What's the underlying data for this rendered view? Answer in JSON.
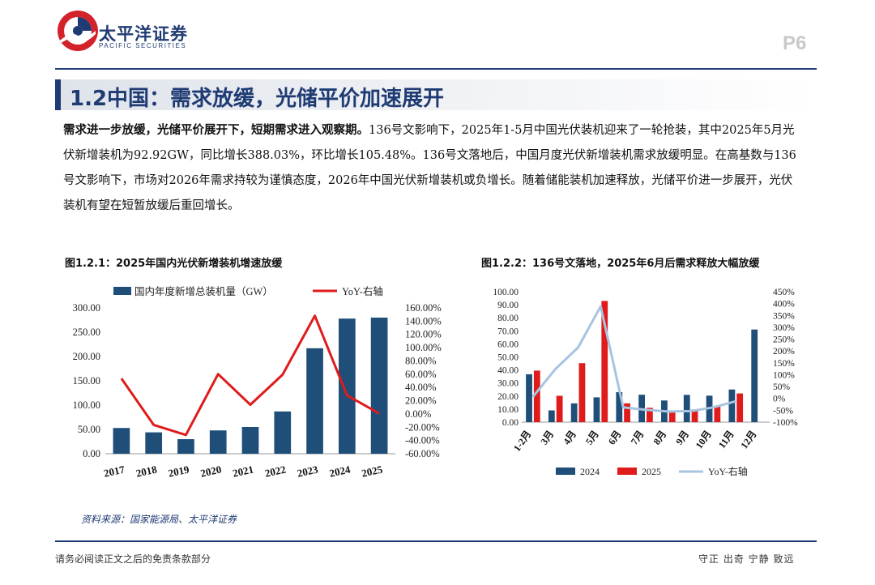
{
  "header": {
    "brand_cn": "太平洋证券",
    "brand_en": "PACIFIC SECURITIES",
    "page_number": "P6"
  },
  "section_title": "1.2中国：需求放缓，光储平价加速展开",
  "body": {
    "lead": "需求进一步放缓，光储平价展开下，短期需求进入观察期。",
    "text": "136号文影响下，2025年1-5月中国光伏装机迎来了一轮抢装，其中2025年5月光伏新增装机为92.92GW，同比增长388.03%，环比增长105.48%。136号文落地后，中国月度光伏新增装机需求放缓明显。在高基数与136号文影响下，市场对2026年需求持较为谨慎态度，2026年中国光伏新增装机或负增长。随着储能装机加速释放，光储平价进一步展开，光伏装机有望在短暂放缓后重回增长。"
  },
  "figure1": {
    "caption": "图1.2.1：2025年国内光伏新增装机增速放缓"
  },
  "figure2": {
    "caption": "图1.2.2：136号文落地，2025年6月后需求释放大幅放缓"
  },
  "source": "资料来源：国家能源局、太平洋证券",
  "footer": {
    "left": "请务必阅读正文之后的免责条款部分",
    "right": "守正 出奇 宁静 致远"
  },
  "colors": {
    "brand_blue": "#1f3b73",
    "bar_blue": "#1f4e79",
    "line_red": "#e01b1b",
    "bar_red": "#e01b1b",
    "line_lightblue": "#a7c4e0"
  },
  "chart_data": [
    {
      "type": "bar",
      "categories": [
        "2017",
        "2018",
        "2019",
        "2020",
        "2021",
        "2022",
        "2023",
        "2024",
        "2025"
      ],
      "series": [
        {
          "name": "国内年度新增总装机量（GW）",
          "axis": "left",
          "type": "bar",
          "values": [
            53,
            44,
            30,
            48,
            55,
            87,
            217,
            278,
            280
          ]
        },
        {
          "name": "YoY-右轴",
          "axis": "right",
          "type": "line",
          "values": [
            53.6,
            -16.5,
            -31.6,
            60.1,
            13.9,
            59.3,
            148.1,
            28.1,
            0.8
          ]
        }
      ],
      "y_left": {
        "min": 0,
        "max": 300,
        "ticks": [
          "0.00",
          "50.00",
          "100.00",
          "150.00",
          "200.00",
          "250.00",
          "300.00"
        ]
      },
      "y_right": {
        "min": -60,
        "max": 160,
        "ticks": [
          "-60.00%",
          "-40.00%",
          "-20.00%",
          "0.00%",
          "20.00%",
          "40.00%",
          "60.00%",
          "80.00%",
          "100.00%",
          "120.00%",
          "140.00%",
          "160.00%"
        ]
      },
      "legend_position": "top",
      "grid": false
    },
    {
      "type": "bar",
      "categories": [
        "1-2月",
        "3月",
        "4月",
        "5月",
        "6月",
        "7月",
        "8月",
        "9月",
        "10月",
        "11月",
        "12月"
      ],
      "series": [
        {
          "name": "2024",
          "axis": "left",
          "type": "bar",
          "values": [
            36.7,
            9.0,
            14.4,
            19.0,
            23.0,
            21.0,
            16.6,
            20.9,
            20.3,
            25.0,
            71.0
          ]
        },
        {
          "name": "2025",
          "axis": "left",
          "type": "bar",
          "values": [
            39.5,
            20.2,
            45.2,
            92.9,
            14.4,
            11.0,
            7.4,
            9.7,
            12.6,
            22.0,
            null
          ]
        },
        {
          "name": "YoY-右轴",
          "axis": "right",
          "type": "line",
          "values": [
            7.5,
            124.4,
            214.7,
            388.0,
            -37.4,
            -47.6,
            -55.4,
            -53.6,
            -37.9,
            -12.0,
            null
          ]
        }
      ],
      "y_left": {
        "min": 0,
        "max": 100,
        "ticks": [
          "0.00",
          "10.00",
          "20.00",
          "30.00",
          "40.00",
          "50.00",
          "60.00",
          "70.00",
          "80.00",
          "90.00",
          "100.00"
        ]
      },
      "y_right": {
        "min": -100,
        "max": 450,
        "ticks": [
          "-100%",
          "-50%",
          "0%",
          "50%",
          "100%",
          "150%",
          "200%",
          "250%",
          "300%",
          "350%",
          "400%",
          "450%"
        ]
      },
      "legend_position": "bottom",
      "grid": false
    }
  ]
}
